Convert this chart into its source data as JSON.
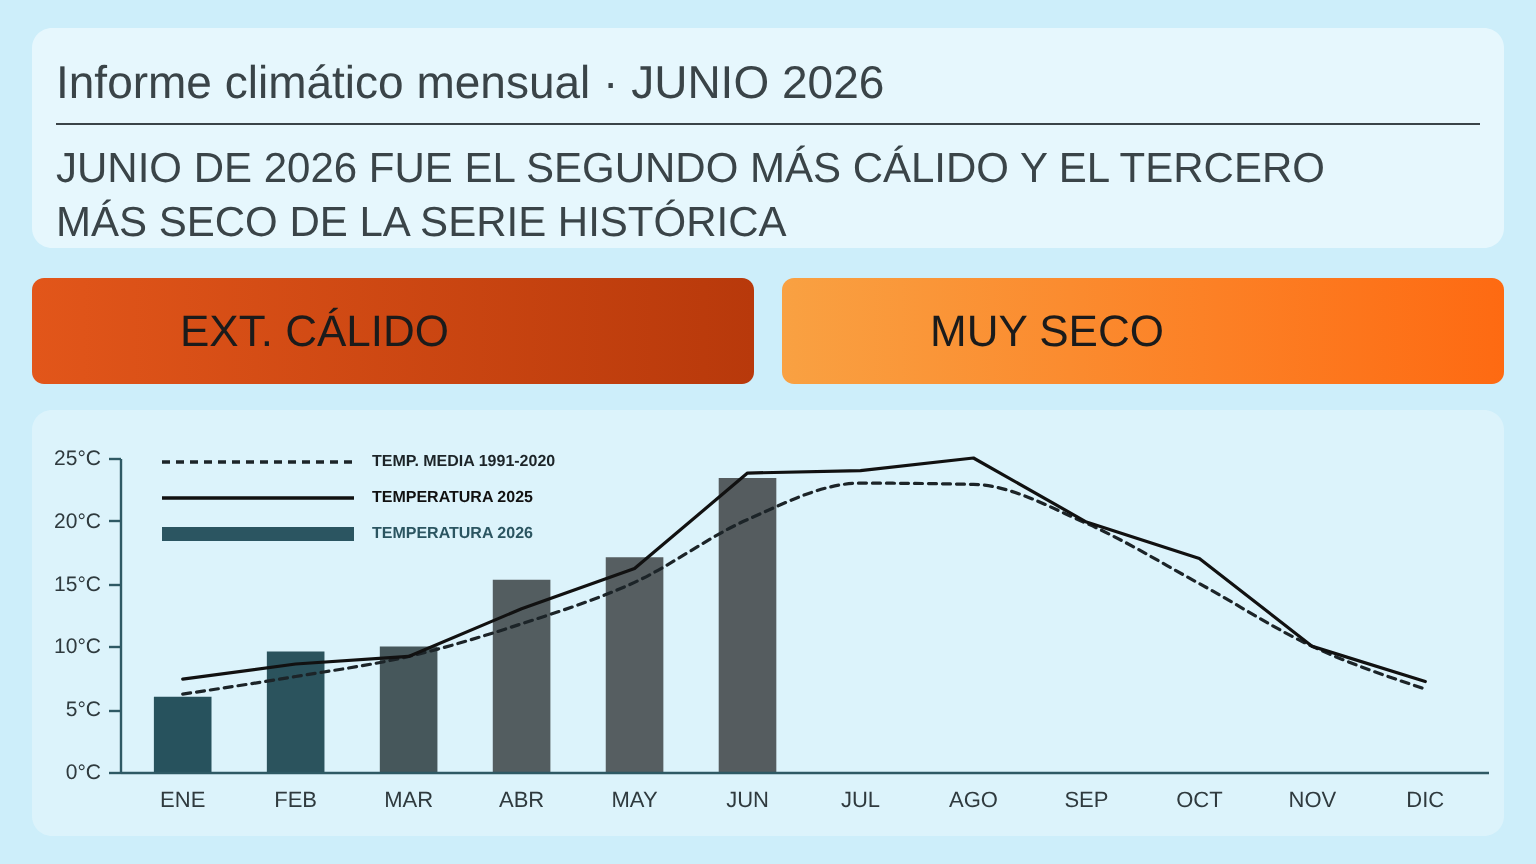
{
  "chart_data": {
    "type": "bar",
    "title": "Informe climático mensual · JUNIO 2026",
    "subtitle": "JUNIO DE 2026 FUE EL SEGUNDO MÁS CÁLIDO Y EL TERCERO MÁS SECO DE LA SERIE HISTÓRICA",
    "annotations": [
      "EXT. CÁLIDO",
      "MUY SECO"
    ],
    "categories": [
      "ENE",
      "FEB",
      "MAR",
      "ABR",
      "MAY",
      "JUN",
      "JUL",
      "AGO",
      "SEP",
      "OCT",
      "NOV",
      "DIC"
    ],
    "series": [
      {
        "name": "TEMP. MEDIA 1991-2020",
        "type": "line",
        "line_style": "dashed",
        "color": "#1c2428",
        "values": [
          6.2,
          7.6,
          9.2,
          11.8,
          15.1,
          20.1,
          23.0,
          22.9,
          19.8,
          15.0,
          10.0,
          6.6
        ]
      },
      {
        "name": "TEMPERATURA 2025",
        "type": "line",
        "line_style": "solid",
        "color": "#111111",
        "values": [
          7.4,
          8.6,
          9.2,
          13.0,
          16.2,
          23.8,
          24.0,
          25.0,
          19.9,
          17.0,
          10.0,
          7.2
        ]
      },
      {
        "name": "TEMPERATURA 2026",
        "color": "#2b5561",
        "colors": [
          "#27525d",
          "#2b535d",
          "#46575b",
          "#535d60",
          "#565e61",
          "#555c5f",
          null,
          null,
          null,
          null,
          null,
          null
        ],
        "values": [
          6.0,
          9.6,
          10.0,
          15.3,
          17.1,
          23.4,
          null,
          null,
          null,
          null,
          null,
          null
        ]
      }
    ],
    "ylim": [
      0,
      25
    ],
    "yticks": [
      {
        "value": 0,
        "label": "0°C"
      },
      {
        "value": 5,
        "label": "5°C"
      },
      {
        "value": 10,
        "label": "10°C"
      },
      {
        "value": 15,
        "label": "15°C"
      },
      {
        "value": 20,
        "label": "20°C"
      },
      {
        "value": 25,
        "label": "25°C"
      }
    ],
    "legend": "top left"
  }
}
